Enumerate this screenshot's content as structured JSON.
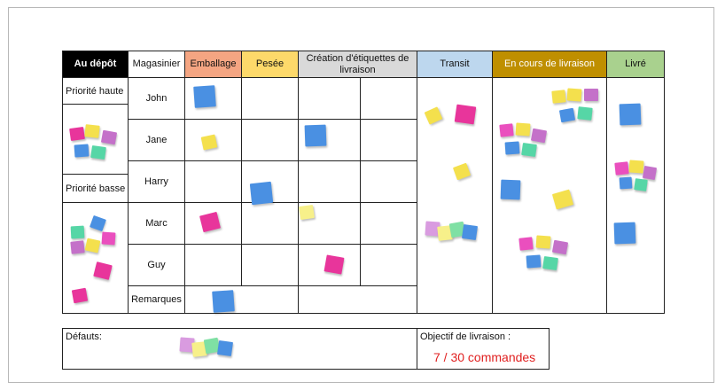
{
  "headers": {
    "au_depot": "Au dépôt",
    "magasinier": "Magasinier",
    "emballage": "Emballage",
    "pesee": "Pesée",
    "creation": "Création d'étiquettes de livraison",
    "transit": "Transit",
    "en_cours": "En cours de livraison",
    "livre": "Livré"
  },
  "rows": {
    "priorite_haute": "Priorité haute",
    "priorite_basse": "Priorité basse",
    "workers": [
      "John",
      "Jane",
      "Harry",
      "Marc",
      "Guy"
    ],
    "remarques": "Remarques"
  },
  "footer": {
    "defauts": "Défauts:",
    "objectif_label": "Objectif de livraison :",
    "objectif_value": "7 / 30 commandes"
  },
  "colors": {
    "au_depot_header": "#000000",
    "emballage_header": "#f4a582",
    "pesee_header": "#fdd96a",
    "creation_header": "#d9d9d9",
    "transit_header": "#bdd7ee",
    "en_cours_header": "#bf8f00",
    "livre_header": "#a9d18e",
    "objectif_text": "#e02020"
  }
}
